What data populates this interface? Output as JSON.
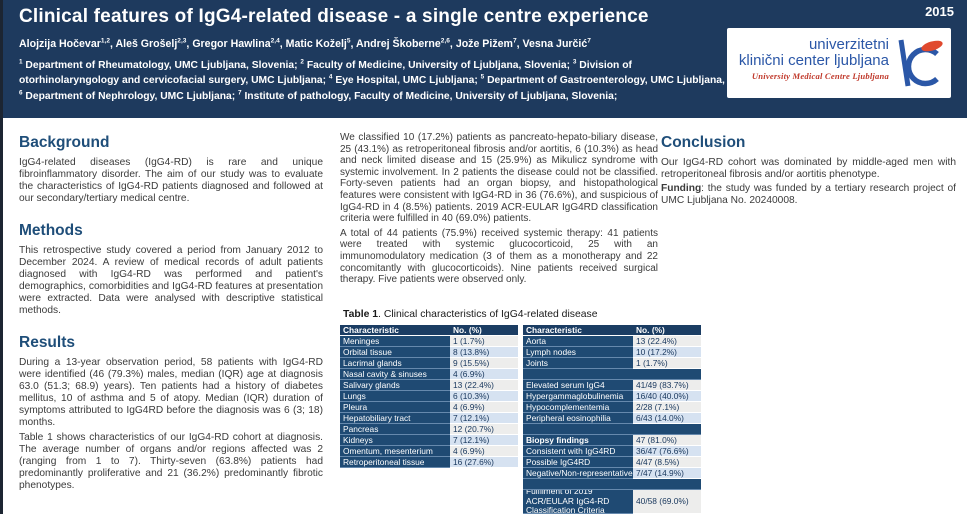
{
  "colors": {
    "header_navy": "#1e3a5e",
    "heading_blue": "#1f4e79",
    "table_label_navy": "#1f4a73",
    "cell_light_gray": "#ededec",
    "cell_light_blue": "#d6e2f1",
    "logo_blue": "#2b57a7",
    "logo_red": "#c0392b"
  },
  "header": {
    "year": "2015",
    "title": "Clinical features of IgG4-related disease - a single centre experience",
    "authors": [
      {
        "name": "Alojzija Hočevar",
        "sup": "1,2"
      },
      {
        "name": "Aleš Grošelj",
        "sup": "2,3"
      },
      {
        "name": "Gregor Hawlina",
        "sup": "2,4"
      },
      {
        "name": "Matic Koželj",
        "sup": "5"
      },
      {
        "name": "Andrej Škoberne",
        "sup": "2,6"
      },
      {
        "name": "Jože Pižem",
        "sup": "7"
      },
      {
        "name": "Vesna Jurčić",
        "sup": "7"
      }
    ],
    "affiliations": [
      {
        "sup": "1",
        "text": " Department of Rheumatology, UMC Ljubljana, Slovenia; "
      },
      {
        "sup": "2",
        "text": " Faculty of Medicine, University of Ljubljana, Slovenia; "
      },
      {
        "sup": "3",
        "text": " Division of otorhinolaryngology and cervicofacial surgery, UMC Ljubljana; "
      },
      {
        "sup": "4",
        "text": " Eye Hospital, UMC Ljubljana; "
      },
      {
        "sup": "5",
        "text": " Department of Gastroenterology, UMC Ljubljana, "
      },
      {
        "sup": "6",
        "text": " Department of Nephrology, UMC Ljubljana; "
      },
      {
        "sup": "7",
        "text": " Institute of pathology, Faculty of Medicine, University of Ljubljana, Slovenia;"
      }
    ],
    "logo": {
      "line1": "univerzitetni",
      "line2": "klinični center ljubljana",
      "line3": "University Medical Centre Ljubljana"
    }
  },
  "sections": {
    "background": {
      "heading": "Background",
      "body": "IgG4-related diseases (IgG4-RD) is rare and unique fibroinflammatory disorder. The aim of our study was to evaluate the characteristics of IgG4-RD patients diagnosed and followed at our secondary/tertiary medical centre."
    },
    "methods": {
      "heading": "Methods",
      "body": "This retrospective study covered a period from January 2012 to December 2024. A review of medical records of adult patients diagnosed with IgG4-RD was performed and patient's demographics, comorbidities and IgG4-RD features at presentation were extracted. Data were analysed with descriptive statistical methods."
    },
    "results": {
      "heading": "Results",
      "p1": "During a 13-year observation period, 58 patients with IgG4-RD were identified (46 (79.3%) males, median (IQR) age at diagnosis 63.0 (51.3; 68.9) years). Ten patients had a history of diabetes mellitus, 10 of asthma and 5 of atopy. Median (IQR) duration of symptoms attributed to IgG4RD before the diagnosis was 6 (3; 18) months.",
      "p2": "Table 1 shows characteristics of our IgG4-RD cohort at diagnosis. The average number of organs and/or regions affected was 2 (ranging from 1 to 7). Thirty-seven (63.8%) patients had predominantly proliferative and 21 (36.2%) predominantly fibrotic phenotypes."
    },
    "middle": {
      "p1": "We classified 10 (17.2%) patients as pancreato-hepato-biliary disease, 25 (43.1%) as retroperitoneal fibrosis and/or aortitis, 6 (10.3%) as head and neck limited disease and 15 (25.9%) as Mikulicz syndrome with systemic involvement. In 2 patients the disease could not be classified. Forty-seven patients had an organ biopsy, and histopathological features were consistent with IgG4-RD in 36 (76.6%), and suspicious of IgG4-RD in 4 (8.5%) patients. 2019 ACR-EULAR IgG4RD classification criteria were fulfilled in 40 (69.0%) patients.",
      "p2": "A total of 44 patients (75.9%) received systemic therapy: 41 patients were treated with systemic glucocorticoid, 25 with an immunomodulatory medication (3 of them as a monotherapy and 22 concomitantly with glucocorticoids). Nine patients received surgical therapy. Five patients were observed only."
    },
    "conclusion": {
      "heading": "Conclusion",
      "body": "Our IgG4-RD cohort was dominated by middle-aged men with retroperitoneal fibrosis and/or aortitis phenotype."
    },
    "funding": {
      "label": "Funding",
      "text": ": the study was funded by a tertiary research project of UMC Ljubljana No. 20240008."
    }
  },
  "table_caption": {
    "label": "Table 1",
    "text": ". Clinical characteristics of IgG4-related disease"
  },
  "table": {
    "col_header": {
      "characteristic": "Characteristic",
      "value": "No. (%)"
    },
    "left_rows": [
      {
        "label": "Meninges",
        "value": "1 (1.7%)",
        "shade": "gray"
      },
      {
        "label": "Orbital tissue",
        "value": "8 (13.8%)",
        "shade": "blue"
      },
      {
        "label": "Lacrimal glands",
        "value": "9 (15.5%)",
        "shade": "gray"
      },
      {
        "label": "Nasal cavity & sinuses",
        "value": "4 (6.9%)",
        "shade": "blue"
      },
      {
        "label": "Salivary glands",
        "value": "13 (22.4%)",
        "shade": "gray"
      },
      {
        "label": "Lungs",
        "value": "6 (10.3%)",
        "shade": "blue"
      },
      {
        "label": "Pleura",
        "value": "4 (6.9%)",
        "shade": "gray"
      },
      {
        "label": "Hepatobiliary tract",
        "value": "7 (12.1%)",
        "shade": "blue"
      },
      {
        "label": "Pancreas",
        "value": "12 (20.7%)",
        "shade": "gray"
      },
      {
        "label": "Kidneys",
        "value": "7 (12.1%)",
        "shade": "blue"
      },
      {
        "label": "Omentum, mesenterium",
        "value": "4 (6.9%)",
        "shade": "gray"
      },
      {
        "label": "Retroperitoneal tissue",
        "value": "16 (27.6%)",
        "shade": "blue"
      }
    ],
    "right_rows": [
      {
        "label": "Aorta",
        "value": "13 (22.4%)",
        "shade": "gray"
      },
      {
        "label": "Lymph nodes",
        "value": "10 (17.2%)",
        "shade": "blue"
      },
      {
        "label": "Joints",
        "value": "1 (1.7%)",
        "shade": "gray"
      },
      {
        "type": "spacer"
      },
      {
        "label": "Elevated serum IgG4",
        "value": "41/49 (83.7%)",
        "shade": "gray"
      },
      {
        "label": "Hypergammaglobulinemia",
        "value": "16/40 (40.0%)",
        "shade": "blue"
      },
      {
        "label": "Hypocomplementemia",
        "value": "2/28 (7.1%)",
        "shade": "gray"
      },
      {
        "label": "Peripheral eosinophilia",
        "value": "6/43 (14.0%)",
        "shade": "blue"
      },
      {
        "type": "spacer"
      },
      {
        "label": "Biopsy findings",
        "value": "47 (81.0%)",
        "shade": "gray",
        "bold": true
      },
      {
        "label": "Consistent with IgG4RD",
        "value": "36/47 (76.6%)",
        "shade": "blue"
      },
      {
        "label": "Possible IgG4RD",
        "value": "4/47 (8.5%)",
        "shade": "gray"
      },
      {
        "label": "Negative/Non-representative",
        "value": "7/47 (14.9%)",
        "shade": "blue"
      },
      {
        "type": "spacer"
      },
      {
        "label": "Fulfilment of 2019 ACR/EULAR IgG4-RD Classification Criteria",
        "value": "40/58 (69.0%)",
        "shade": "gray",
        "tall": true
      }
    ]
  }
}
